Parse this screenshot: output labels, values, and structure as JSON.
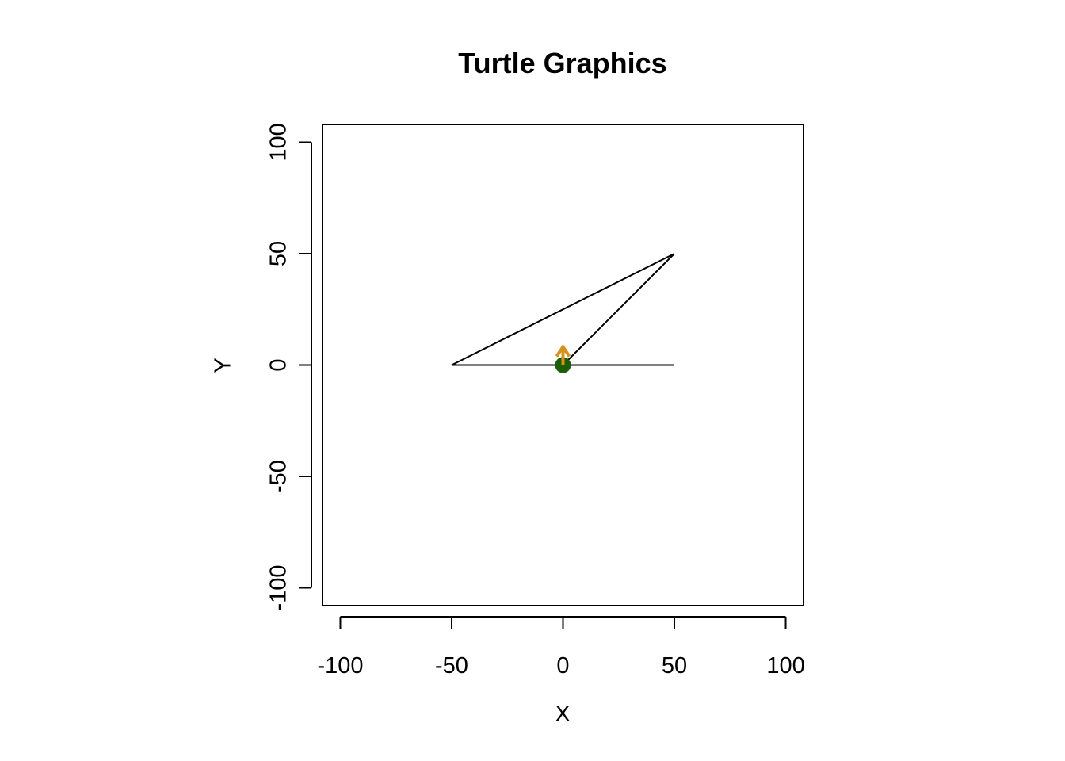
{
  "chart_data": {
    "type": "line",
    "title": "Turtle Graphics",
    "xlabel": "X",
    "ylabel": "Y",
    "xlim": [
      -108,
      108
    ],
    "ylim": [
      -108,
      108
    ],
    "xticks": [
      -100,
      -50,
      0,
      50,
      100
    ],
    "yticks": [
      -100,
      -50,
      0,
      50,
      100
    ],
    "xtick_labels": [
      "-100",
      "-50",
      "0",
      "50",
      "100"
    ],
    "ytick_labels": [
      "-100",
      "-50",
      "0",
      "50",
      "100"
    ],
    "grid": false,
    "legend": "none",
    "path": [
      {
        "x": 0,
        "y": 0
      },
      {
        "x": 50,
        "y": 0
      },
      {
        "x": -50,
        "y": 0
      },
      {
        "x": 50,
        "y": 50
      },
      {
        "x": 0,
        "y": 0
      }
    ],
    "path_color": "#000000",
    "start_point": {
      "x": 0,
      "y": 0,
      "color": "#1b5e05"
    },
    "turtle": {
      "x": 0,
      "y": 0,
      "heading": "up",
      "color": "#d4921f"
    }
  }
}
